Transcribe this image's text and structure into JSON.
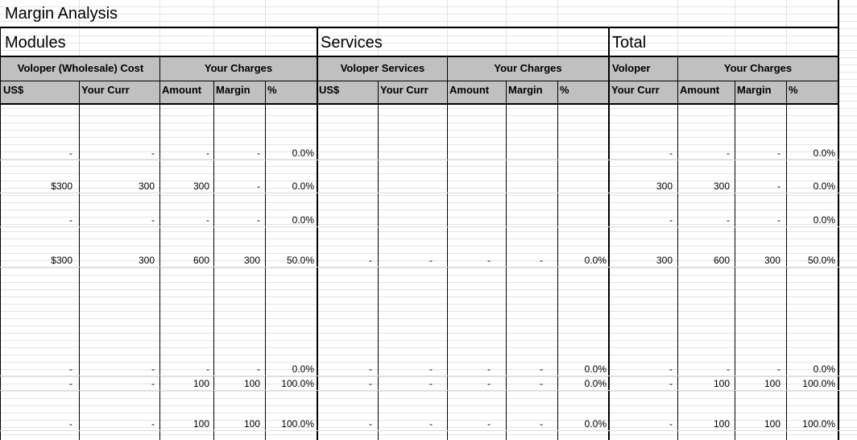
{
  "title": "Margin Analysis",
  "sections": {
    "modules": "Modules",
    "services": "Services",
    "total": "Total"
  },
  "headers": {
    "voloper_wholesale_cost": "Voloper (Wholesale) Cost",
    "your_charges": "Your Charges",
    "voloper_services": "Voloper Services",
    "voloper": "Voloper",
    "usd": "US$",
    "your_curr": "Your Curr",
    "amount": "Amount",
    "margin": "Margin",
    "pct": "%"
  },
  "rows": [
    [
      "-",
      "-",
      "-",
      "-",
      "0.0%",
      "",
      "",
      "",
      "",
      "",
      "-",
      "-",
      "-",
      "0.0%"
    ],
    [
      "$300",
      "300",
      "300",
      "-",
      "0.0%",
      "",
      "",
      "",
      "",
      "",
      "300",
      "300",
      "-",
      "0.0%"
    ],
    [
      "-",
      "-",
      "-",
      "-",
      "0.0%",
      "",
      "",
      "",
      "",
      "",
      "-",
      "-",
      "-",
      "0.0%"
    ],
    [
      "$300",
      "300",
      "600",
      "300",
      "50.0%",
      "-",
      "-",
      "-",
      "-",
      "0.0%",
      "300",
      "600",
      "300",
      "50.0%"
    ],
    [
      "-",
      "-",
      "-",
      "-",
      "0.0%",
      "-",
      "-",
      "-",
      "-",
      "0.0%",
      "-",
      "-",
      "-",
      "0.0%"
    ],
    [
      "-",
      "-",
      "100",
      "100",
      "100.0%",
      "-",
      "-",
      "-",
      "-",
      "0.0%",
      "-",
      "100",
      "100",
      "100.0%"
    ],
    [
      "-",
      "-",
      "100",
      "100",
      "100.0%",
      "-",
      "-",
      "-",
      "-",
      "0.0%",
      "-",
      "100",
      "100",
      "100.0%"
    ]
  ]
}
